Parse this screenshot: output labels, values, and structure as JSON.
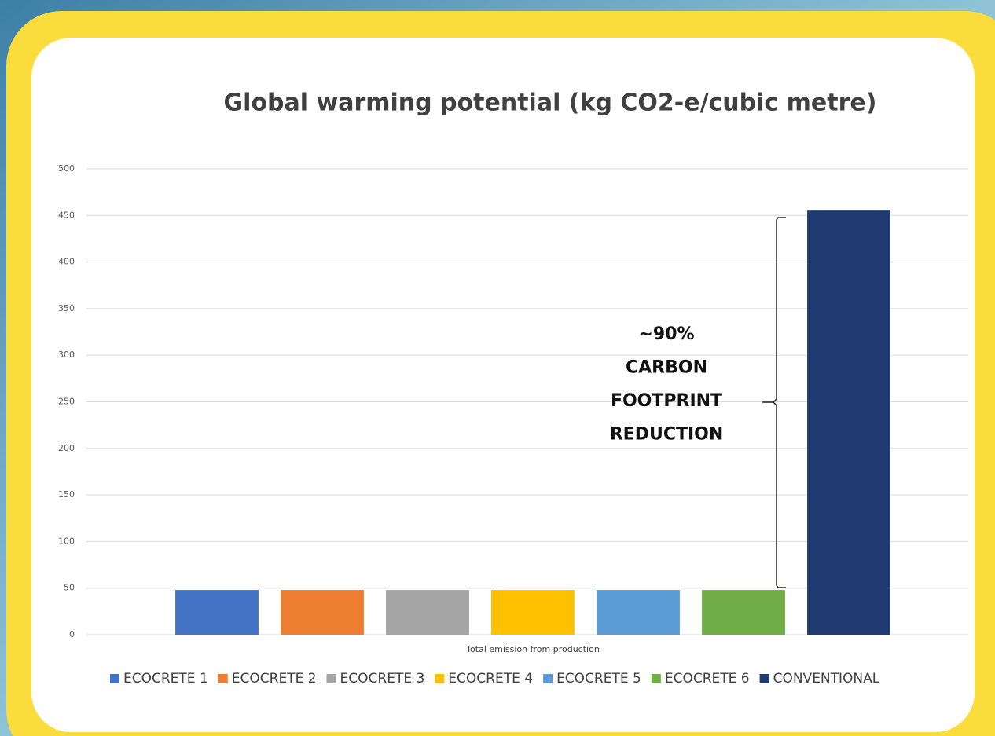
{
  "chart_data": {
    "type": "bar",
    "title": "Global warming potential (kg CO2-e/cubic metre)",
    "categories": [
      "Total emission from production"
    ],
    "series": [
      {
        "name": "ECOCRETE 1",
        "color": "#4472c4",
        "values": [
          48
        ]
      },
      {
        "name": "ECOCRETE 2",
        "color": "#ed7d31",
        "values": [
          48
        ]
      },
      {
        "name": "ECOCRETE 3",
        "color": "#a5a5a5",
        "values": [
          48
        ]
      },
      {
        "name": "ECOCRETE 4",
        "color": "#ffc000",
        "values": [
          48
        ]
      },
      {
        "name": "ECOCRETE 5",
        "color": "#5b9bd5",
        "values": [
          48
        ]
      },
      {
        "name": "ECOCRETE 6",
        "color": "#70ad47",
        "values": [
          48
        ]
      },
      {
        "name": "CONVENTIONAL",
        "color": "#1f3a6e",
        "values": [
          456
        ]
      }
    ],
    "ylim": [
      0,
      500
    ],
    "yticks": [
      0,
      50,
      100,
      150,
      200,
      250,
      300,
      350,
      400,
      450,
      500
    ],
    "grid": true,
    "legend": "bottom",
    "annotation": [
      "~90%",
      "CARBON",
      "FOOTPRINT",
      "REDUCTION"
    ]
  }
}
